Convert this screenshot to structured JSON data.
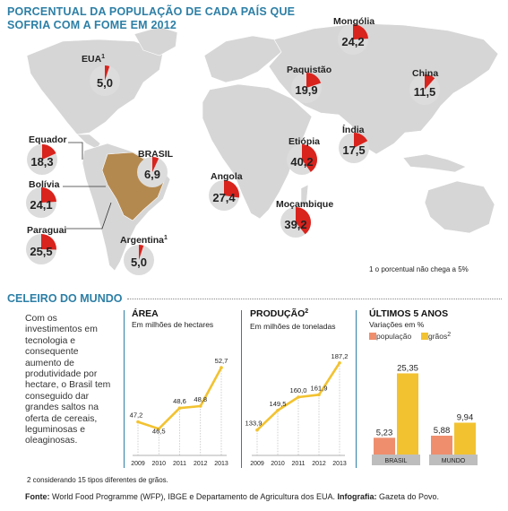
{
  "map": {
    "title": "PORCENTUAL DA POPULAÇÃO DE CADA PAÍS QUE SOFRIA COM A FOME EM 2012",
    "note": "1 o porcentual não chega a 5%"
  },
  "chart_data": [
    {
      "type": "map",
      "title": "PORCENTUAL DA POPULAÇÃO DE CADA PAÍS QUE SOFRIA COM A FOME EM 2012",
      "points": [
        {
          "country": "EUA",
          "sup": "1",
          "label": "5,0",
          "value": 5.0
        },
        {
          "country": "Mongólia",
          "sup": "",
          "label": "24,2",
          "value": 24.2
        },
        {
          "country": "Paquistão",
          "sup": "",
          "label": "19,9",
          "value": 19.9
        },
        {
          "country": "China",
          "sup": "",
          "label": "11,5",
          "value": 11.5
        },
        {
          "country": "Índia",
          "sup": "",
          "label": "17,5",
          "value": 17.5
        },
        {
          "country": "Etiópia",
          "sup": "",
          "label": "40,2",
          "value": 40.2
        },
        {
          "country": "Equador",
          "sup": "",
          "label": "18,3",
          "value": 18.3
        },
        {
          "country": "BRASIL",
          "sup": "",
          "label": "6,9",
          "value": 6.9
        },
        {
          "country": "Bolívia",
          "sup": "",
          "label": "24,1",
          "value": 24.1
        },
        {
          "country": "Angola",
          "sup": "",
          "label": "27,4",
          "value": 27.4
        },
        {
          "country": "Moçambique",
          "sup": "",
          "label": "39,2",
          "value": 39.2
        },
        {
          "country": "Paraguai",
          "sup": "",
          "label": "25,5",
          "value": 25.5
        },
        {
          "country": "Argentina",
          "sup": "1",
          "label": "5,0",
          "value": 5.0
        }
      ]
    },
    {
      "type": "line",
      "title": "ÁREA",
      "subtitle": "Em milhões de hectares",
      "x": [
        "2009",
        "2010",
        "2011",
        "2012",
        "2013"
      ],
      "values": [
        47.2,
        46.5,
        48.6,
        48.8,
        52.7
      ],
      "labels": [
        "47,2",
        "46,5",
        "48,6",
        "48,8",
        "52,7"
      ],
      "ylim": [
        45.8,
        53.8
      ]
    },
    {
      "type": "line",
      "title": "PRODUÇÃO",
      "title_sup": "2",
      "subtitle": "Em milhões de toneladas",
      "x": [
        "2009",
        "2010",
        "2011",
        "2012",
        "2013"
      ],
      "values": [
        133.9,
        149.5,
        160.0,
        161.9,
        187.2
      ],
      "labels": [
        "133,9",
        "149,5",
        "160,0",
        "161,9",
        "187,2"
      ],
      "ylim": [
        128,
        192
      ]
    },
    {
      "type": "bar",
      "title": "ÚLTIMOS 5 ANOS",
      "subtitle": "Variações em %",
      "categories": [
        "BRASIL",
        "MUNDO"
      ],
      "series": [
        {
          "name": "população",
          "values": [
            5.23,
            5.88
          ],
          "labels": [
            "5,23",
            "5,88"
          ]
        },
        {
          "name": "grãos",
          "name_sup": "2",
          "values": [
            25.35,
            9.94
          ],
          "labels": [
            "25,35",
            "9,94"
          ]
        }
      ]
    }
  ],
  "section": {
    "title": "CELEIRO DO MUNDO",
    "text": "Com os investimentos em tecnologia e consequente aumento de produtividade por hectare, o Brasil tem conseguido dar grandes saltos na oferta de cereais, leguminosas e oleaginosas."
  },
  "footnote": "2 considerando 15 tipos diferentes de grãos.",
  "source": {
    "label1": "Fonte:",
    "text1": " World Food Programme (WFP), IBGE e Departamento de Agricultura dos EUA. ",
    "label2": "Infografia:",
    "text2": " Gazeta do Povo."
  },
  "colors": {
    "accent": "#2d7fa6",
    "map_land": "#d6d6d6",
    "circle": "#dcdcdc",
    "pie": "#d9231d",
    "line": "#f2c230",
    "bar_pop": "#ef8e6d",
    "bar_grain": "#f2c230"
  }
}
